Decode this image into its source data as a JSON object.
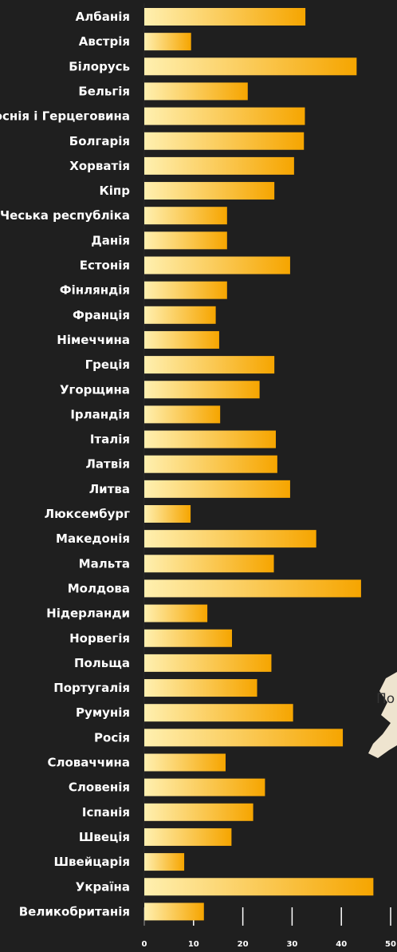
{
  "chart_data": {
    "type": "bar",
    "orientation": "horizontal",
    "categories": [
      "Албанія",
      "Австрія",
      "Білорусь",
      "Бельгія",
      "Боснія і Герцеговина",
      "Болгарія",
      "Хорватія",
      "Кіпр",
      "Чеська республіка",
      "Данія",
      "Естонія",
      "Фінляндія",
      "Франція",
      "Німеччина",
      "Греція",
      "Угорщина",
      "Ірландія",
      "Італія",
      "Латвія",
      "Литва",
      "Люксембург",
      "Македонія",
      "Мальта",
      "Молдова",
      "Нідерланди",
      "Норвегія",
      "Польща",
      "Португалія",
      "Румунія",
      "Росія",
      "Словаччина",
      "Словенія",
      "Іспанія",
      "Швеція",
      "Швейцарія",
      "Україна",
      "Великобританія"
    ],
    "values": [
      32.7,
      9.5,
      43.1,
      21,
      32.6,
      32.4,
      30.4,
      26.4,
      16.8,
      16.8,
      29.6,
      16.8,
      14.5,
      15.2,
      26.4,
      23.4,
      15.4,
      26.7,
      27,
      29.6,
      9.4,
      34.9,
      26.3,
      44,
      12.8,
      17.8,
      25.8,
      22.9,
      30.2,
      40.3,
      16.5,
      24.5,
      22.1,
      17.7,
      8.1,
      46.5,
      12.1
    ],
    "xlim": [
      0,
      50
    ],
    "xticks": [
      "0",
      "10",
      "20",
      "30",
      "40",
      "50"
    ],
    "grid": true,
    "title": "",
    "xlabel": "",
    "ylabel": "",
    "bar_color_start": "#fff0b0",
    "bar_color_end": "#f6a500",
    "background": "#1f1f1f",
    "overlay_text": "По"
  }
}
